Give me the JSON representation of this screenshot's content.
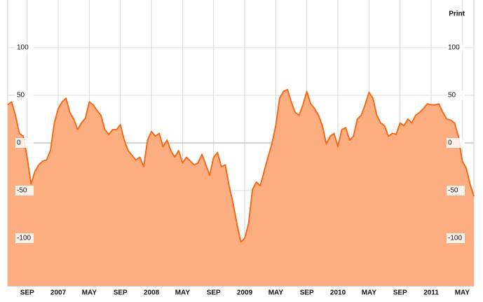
{
  "chart_data": {
    "type": "area",
    "print_button": "Print",
    "categories": [
      null,
      null,
      null,
      null,
      null,
      "SEP",
      null,
      null,
      null,
      null,
      null,
      null,
      null,
      "2007",
      null,
      null,
      null,
      null,
      null,
      null,
      null,
      "MAY",
      null,
      null,
      null,
      null,
      null,
      null,
      null,
      "SEP",
      null,
      null,
      null,
      null,
      null,
      null,
      null,
      "2008",
      null,
      null,
      null,
      null,
      null,
      null,
      null,
      "MAY",
      null,
      null,
      null,
      null,
      null,
      null,
      null,
      "SEP",
      null,
      null,
      null,
      null,
      null,
      null,
      null,
      "2009",
      null,
      null,
      null,
      null,
      null,
      null,
      null,
      "MAY",
      null,
      null,
      null,
      null,
      null,
      null,
      null,
      "SEP",
      null,
      null,
      null,
      null,
      null,
      null,
      null,
      "2010",
      null,
      null,
      null,
      null,
      null,
      null,
      null,
      "MAY",
      null,
      null,
      null,
      null,
      null,
      null,
      null,
      "SEP",
      null,
      null,
      null,
      null,
      null,
      null,
      null,
      "2011",
      null,
      null,
      null,
      null,
      null,
      null,
      null,
      "MAY",
      null,
      null,
      null
    ],
    "values": [
      40,
      43,
      29,
      10,
      7,
      -15,
      -43,
      -30,
      -23,
      -19,
      -18,
      -8,
      21,
      36,
      43,
      47,
      32,
      25,
      14,
      21,
      26,
      43,
      40,
      34,
      29,
      14,
      9,
      14,
      14,
      19,
      3,
      -8,
      -13,
      -18,
      -15,
      -25,
      3,
      12,
      7,
      10,
      -4,
      3,
      -8,
      -15,
      -8,
      -21,
      -15,
      -19,
      -23,
      -21,
      -12,
      -23,
      -34,
      -15,
      -10,
      -25,
      -23,
      -45,
      -63,
      -85,
      -104,
      -100,
      -85,
      -49,
      -41,
      -45,
      -30,
      -15,
      -1,
      18,
      47,
      54,
      56,
      43,
      32,
      29,
      40,
      54,
      41,
      36,
      29,
      18,
      -1,
      7,
      10,
      -4,
      14,
      16,
      3,
      7,
      25,
      29,
      40,
      53,
      47,
      29,
      21,
      18,
      7,
      10,
      9,
      21,
      18,
      25,
      21,
      29,
      32,
      36,
      41,
      40,
      40,
      41,
      32,
      25,
      24,
      21,
      7,
      -19,
      -26,
      -43,
      -56
    ],
    "color": "#f26b1d",
    "fill": "#fdae80",
    "ylim": [
      -150,
      150
    ],
    "yticks": [
      -100,
      -50,
      0,
      50,
      100
    ],
    "grid": true
  }
}
